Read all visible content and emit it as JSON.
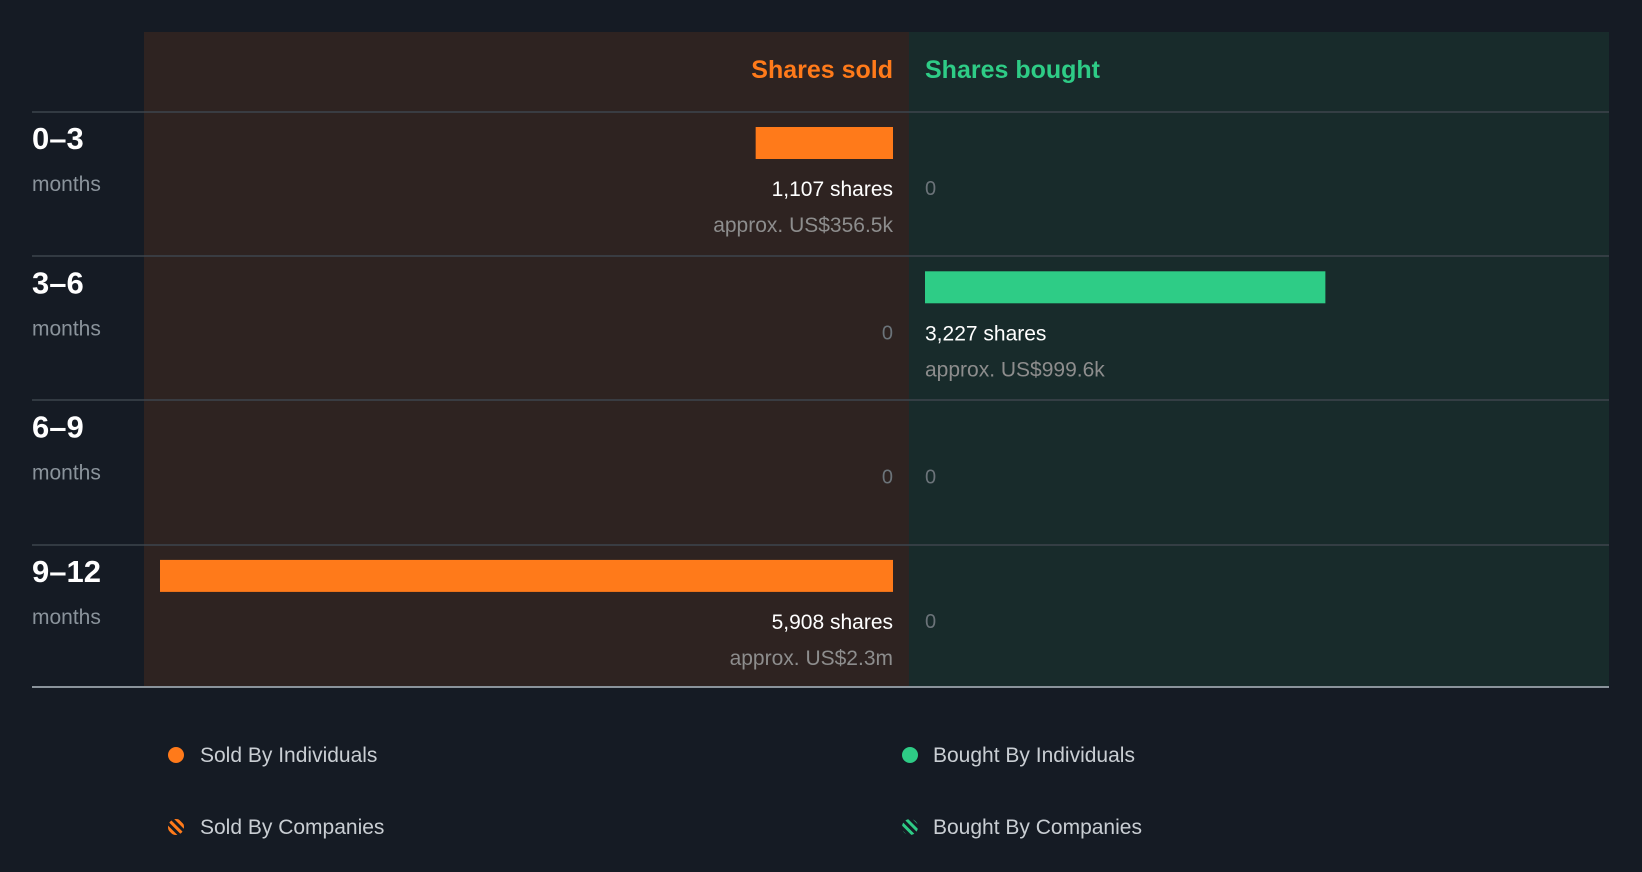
{
  "chart_data": {
    "type": "bar",
    "orientation": "horizontal-diverging",
    "headers": {
      "sold": "Shares sold",
      "bought": "Shares bought"
    },
    "colors": {
      "sold": "#ff7a1a",
      "bought": "#2ecc86"
    },
    "periods": [
      {
        "range": "0–3",
        "unit": "months",
        "sold": {
          "shares": 1107,
          "label": "1,107 shares",
          "approx": "approx. US$356.5k"
        },
        "bought": {
          "shares": 0,
          "label": "0",
          "approx": ""
        }
      },
      {
        "range": "3–6",
        "unit": "months",
        "sold": {
          "shares": 0,
          "label": "0",
          "approx": ""
        },
        "bought": {
          "shares": 3227,
          "label": "3,227 shares",
          "approx": "approx. US$999.6k"
        }
      },
      {
        "range": "6–9",
        "unit": "months",
        "sold": {
          "shares": 0,
          "label": "0",
          "approx": ""
        },
        "bought": {
          "shares": 0,
          "label": "0",
          "approx": ""
        }
      },
      {
        "range": "9–12",
        "unit": "months",
        "sold": {
          "shares": 5908,
          "label": "5,908 shares",
          "approx": "approx. US$2.3m"
        },
        "bought": {
          "shares": 0,
          "label": "0",
          "approx": ""
        }
      }
    ],
    "scale_max_shares": 5908,
    "legend": [
      {
        "label": "Sold By Individuals",
        "marker": "dot",
        "color": "#ff7a1a"
      },
      {
        "label": "Bought By Individuals",
        "marker": "dot",
        "color": "#2ecc86"
      },
      {
        "label": "Sold By Companies",
        "marker": "hatched",
        "color": "#ff7a1a"
      },
      {
        "label": "Bought By Companies",
        "marker": "hatched",
        "color": "#2ecc86"
      }
    ]
  }
}
